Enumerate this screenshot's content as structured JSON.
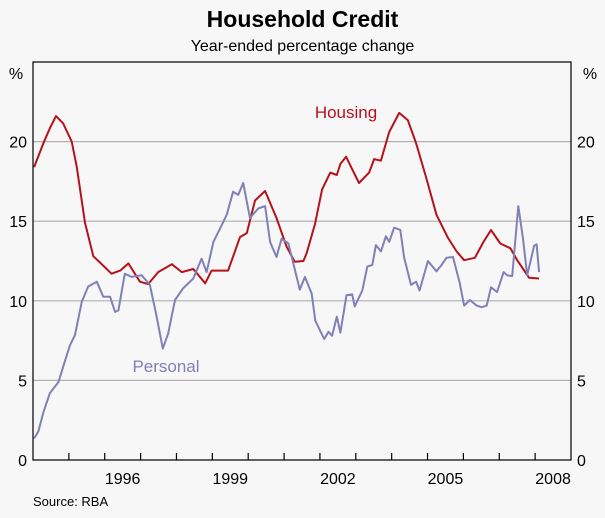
{
  "chart_data": {
    "type": "line",
    "title": "Household Credit",
    "subtitle": "Year-ended percentage change",
    "ylabel_left": "%",
    "ylabel_right": "%",
    "ylim": [
      0,
      25
    ],
    "yticks": [
      0,
      5,
      10,
      15,
      20
    ],
    "xlim": [
      1994,
      2009
    ],
    "xtick_labels": [
      {
        "label": "1996",
        "year": 1996
      },
      {
        "label": "1999",
        "year": 1999
      },
      {
        "label": "2002",
        "year": 2002
      },
      {
        "label": "2005",
        "year": 2005
      },
      {
        "label": "2008",
        "year": 2008
      }
    ],
    "grid": true,
    "source": "Source: RBA",
    "series": [
      {
        "name": "Housing",
        "color": "#b5121b",
        "x": [
          1994.03,
          1994.29,
          1994.47,
          1994.64,
          1994.84,
          1995.08,
          1995.22,
          1995.45,
          1995.68,
          1995.87,
          1996.19,
          1996.43,
          1996.66,
          1996.98,
          1997.21,
          1997.49,
          1997.87,
          1998.15,
          1998.47,
          1998.8,
          1998.98,
          1999.21,
          1999.44,
          1999.77,
          1999.96,
          2000.19,
          2000.47,
          2000.79,
          2001.07,
          2001.3,
          2001.54,
          2001.63,
          2001.86,
          2002.06,
          2002.29,
          2002.47,
          2002.57,
          2002.73,
          2002.89,
          2003.09,
          2003.37,
          2003.51,
          2003.7,
          2003.93,
          2004.21,
          2004.45,
          2004.68,
          2004.96,
          2005.25,
          2005.57,
          2005.81,
          2006.02,
          2006.32,
          2006.56,
          2006.77,
          2007.03,
          2007.31,
          2007.5,
          2007.83,
          2008.11
        ],
        "y": [
          18.4,
          19.9,
          20.85,
          21.6,
          21.15,
          20.0,
          18.4,
          14.9,
          12.8,
          12.4,
          11.7,
          11.9,
          12.35,
          11.2,
          11.05,
          11.8,
          12.3,
          11.8,
          12.0,
          11.1,
          11.9,
          11.9,
          11.9,
          14.0,
          14.25,
          16.3,
          16.9,
          15.2,
          13.4,
          12.45,
          12.5,
          13.0,
          14.8,
          17.0,
          18.05,
          17.9,
          18.6,
          19.05,
          18.3,
          17.4,
          18.05,
          18.9,
          18.8,
          20.6,
          21.8,
          21.35,
          19.9,
          17.75,
          15.4,
          13.95,
          13.1,
          12.55,
          12.7,
          13.7,
          14.45,
          13.6,
          13.3,
          12.55,
          11.45,
          11.4
        ]
      },
      {
        "name": "Personal",
        "color": "#8080b8",
        "x": [
          1994.03,
          1994.15,
          1994.29,
          1994.47,
          1994.71,
          1994.84,
          1995.03,
          1995.17,
          1995.36,
          1995.54,
          1995.78,
          1995.96,
          1996.15,
          1996.29,
          1996.38,
          1996.56,
          1996.75,
          1997.03,
          1997.26,
          1997.43,
          1997.62,
          1997.77,
          1997.96,
          1998.19,
          1998.47,
          1998.7,
          1998.84,
          1999.03,
          1999.26,
          1999.4,
          1999.58,
          1999.72,
          1999.86,
          2000.05,
          2000.28,
          2000.47,
          2000.61,
          2000.79,
          2000.93,
          2001.12,
          2001.44,
          2001.58,
          2001.77,
          2001.87,
          2002.12,
          2002.24,
          2002.34,
          2002.47,
          2002.57,
          2002.74,
          2002.9,
          2002.97,
          2003.18,
          2003.32,
          2003.46,
          2003.56,
          2003.7,
          2003.84,
          2003.93,
          2004.07,
          2004.24,
          2004.35,
          2004.54,
          2004.68,
          2004.78,
          2005.01,
          2005.25,
          2005.39,
          2005.53,
          2005.71,
          2005.9,
          2006.02,
          2006.18,
          2006.37,
          2006.51,
          2006.65,
          2006.77,
          2006.94,
          2007.12,
          2007.22,
          2007.36,
          2007.53,
          2007.66,
          2007.78,
          2007.97,
          2008.04,
          2008.11
        ],
        "y": [
          1.35,
          1.8,
          3.0,
          4.2,
          4.9,
          5.85,
          7.2,
          7.85,
          9.95,
          10.9,
          11.2,
          10.25,
          10.25,
          9.3,
          9.4,
          11.7,
          11.5,
          11.6,
          11.0,
          9.2,
          7.0,
          7.95,
          10.05,
          10.8,
          11.4,
          12.65,
          11.8,
          13.7,
          14.75,
          15.4,
          16.85,
          16.65,
          17.4,
          15.2,
          15.8,
          15.95,
          13.7,
          12.75,
          13.9,
          13.6,
          10.7,
          11.5,
          10.45,
          8.75,
          7.6,
          8.05,
          7.8,
          9.0,
          8.0,
          10.35,
          10.4,
          9.65,
          10.65,
          12.15,
          12.25,
          13.5,
          13.1,
          14.05,
          13.7,
          14.6,
          14.45,
          12.7,
          11.0,
          11.2,
          10.65,
          12.5,
          11.85,
          12.25,
          12.7,
          12.75,
          11.1,
          9.7,
          10.05,
          9.7,
          9.6,
          9.7,
          10.85,
          10.55,
          11.8,
          11.6,
          11.55,
          15.95,
          13.95,
          11.6,
          13.45,
          13.55,
          11.8
        ]
      }
    ]
  }
}
